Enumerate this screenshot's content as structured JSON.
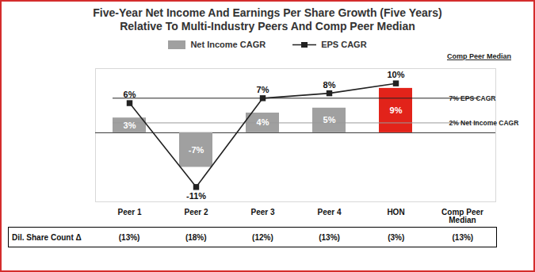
{
  "chart_data": {
    "type": "bar",
    "title": "Five-Year Net Income And Earnings Per Share Growth (Five Years)",
    "subtitle": "Relative To Multi-Industry Peers And Comp Peer Median",
    "categories": [
      "Peer 1",
      "Peer 2",
      "Peer 3",
      "Peer 4",
      "HON",
      "Comp Peer Median"
    ],
    "series": [
      {
        "name": "Net Income CAGR",
        "type": "bar",
        "colors": [
          "#a0a0a0",
          "#a0a0a0",
          "#a0a0a0",
          "#a0a0a0",
          "#e2231a",
          null
        ],
        "values": [
          3,
          -7,
          4,
          5,
          9,
          null
        ],
        "value_labels": [
          "3%",
          "-7%",
          "4%",
          "5%",
          "9%",
          null
        ]
      },
      {
        "name": "EPS CAGR",
        "type": "line",
        "color": "#222222",
        "marker": "square",
        "values": [
          6,
          -11,
          7,
          8,
          10,
          null
        ],
        "value_labels": [
          "6%",
          "-11%",
          "7%",
          "8%",
          "10%",
          null
        ]
      }
    ],
    "ylim": [
      -14,
      13
    ],
    "yticks": [],
    "tick_labels": "x",
    "grid": false,
    "legend": "top",
    "data_labels": true,
    "reference_heading": "Comp Peer Median",
    "reference_lines": [
      {
        "value": 7,
        "label": "7% EPS CAGR",
        "line_style": "dashed",
        "color": "#222222"
      },
      {
        "value": 2,
        "label": "2% Net Income CAGR",
        "line_style": "dashed",
        "color": "#9a9a9a"
      }
    ],
    "table": {
      "row_label": "Dil. Share Count Δ",
      "values": [
        -13,
        -18,
        -12,
        -13,
        -3,
        -13
      ],
      "value_labels": [
        "(13%)",
        "(18%)",
        "(12%)",
        "(13%)",
        "(3%)",
        "(13%)"
      ]
    }
  }
}
